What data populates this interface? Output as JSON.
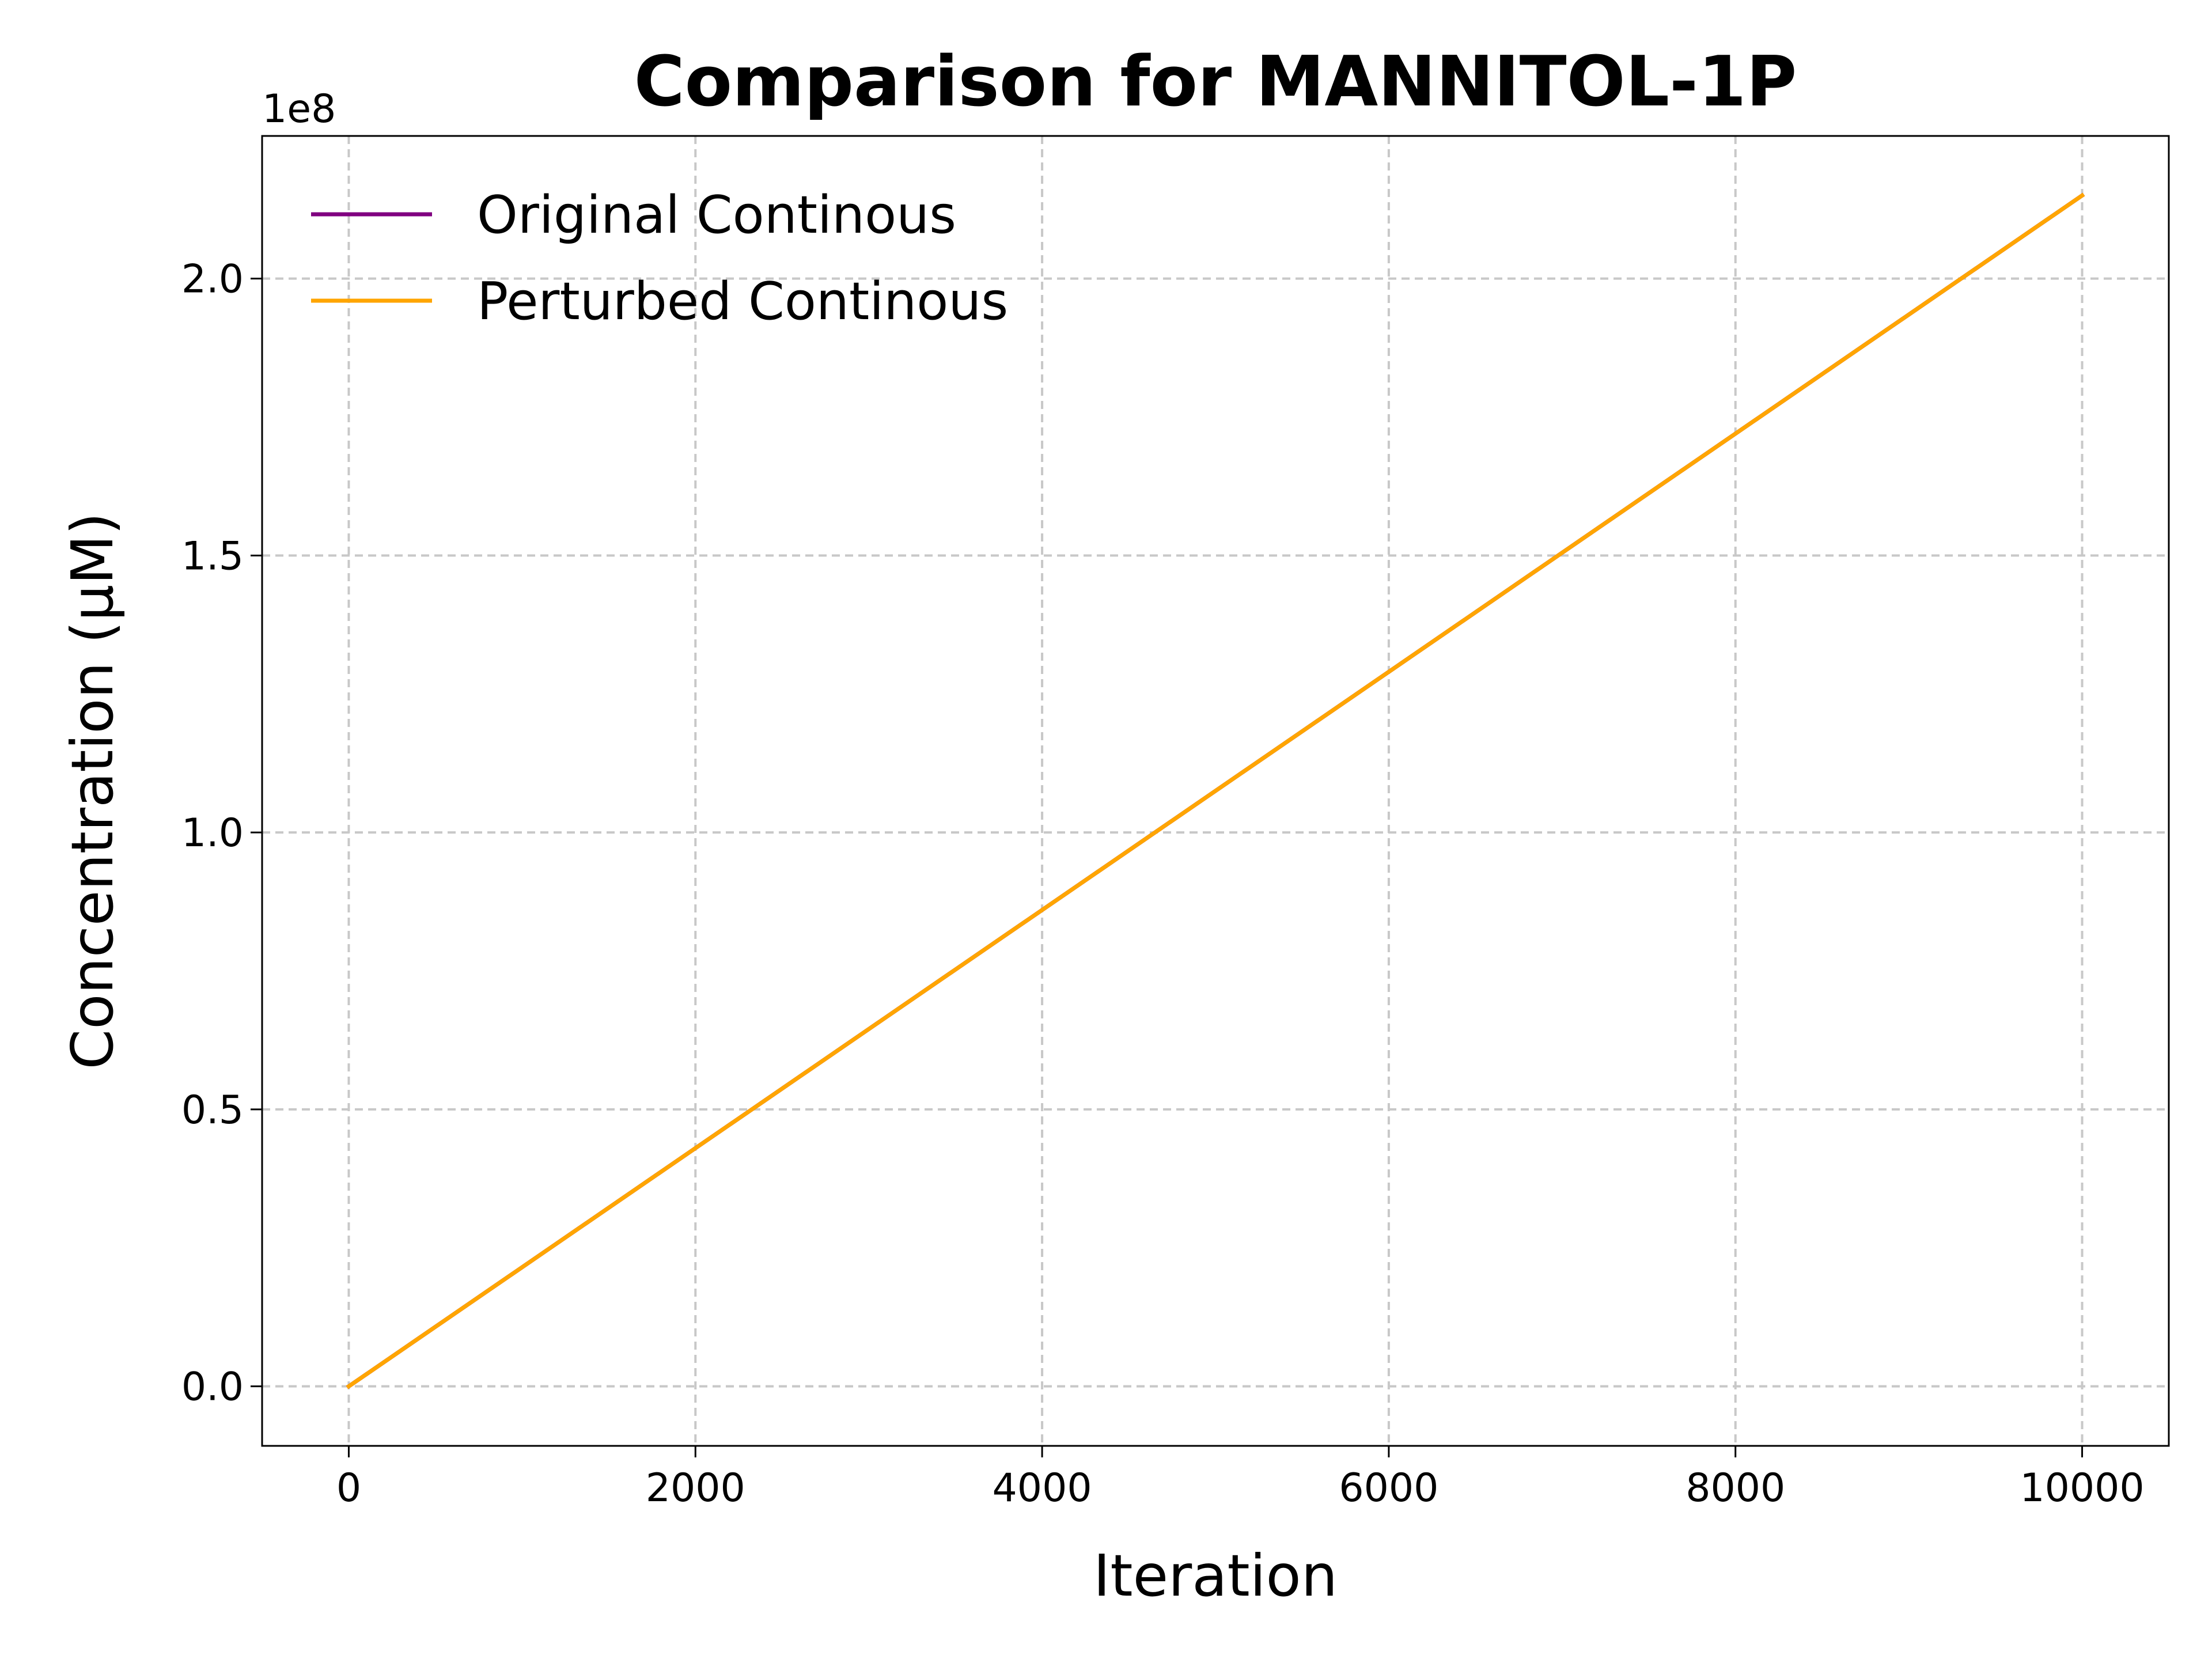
{
  "chart_data": {
    "type": "line",
    "title": "Comparison for MANNITOL-1P",
    "xlabel": "Iteration",
    "ylabel": "Concentration (μM)",
    "y_offset_label": "1e8",
    "xlim": [
      -500,
      10500
    ],
    "ylim": [
      -10750000,
      225750000
    ],
    "x_ticks": [
      0,
      2000,
      4000,
      6000,
      8000,
      10000
    ],
    "x_tick_labels": [
      "0",
      "2000",
      "4000",
      "6000",
      "8000",
      "10000"
    ],
    "y_ticks": [
      0,
      50000000,
      100000000,
      150000000,
      200000000
    ],
    "y_tick_labels": [
      "0.0",
      "0.5",
      "1.0",
      "1.5",
      "2.0"
    ],
    "grid": true,
    "legend_position": "upper-left",
    "series": [
      {
        "name": "Original Continous",
        "color": "#800080",
        "x": [
          0,
          10000
        ],
        "y": [
          0,
          215000000
        ]
      },
      {
        "name": "Perturbed Continous",
        "color": "#FFA500",
        "x": [
          0,
          10000
        ],
        "y": [
          0,
          215000000
        ]
      }
    ]
  }
}
